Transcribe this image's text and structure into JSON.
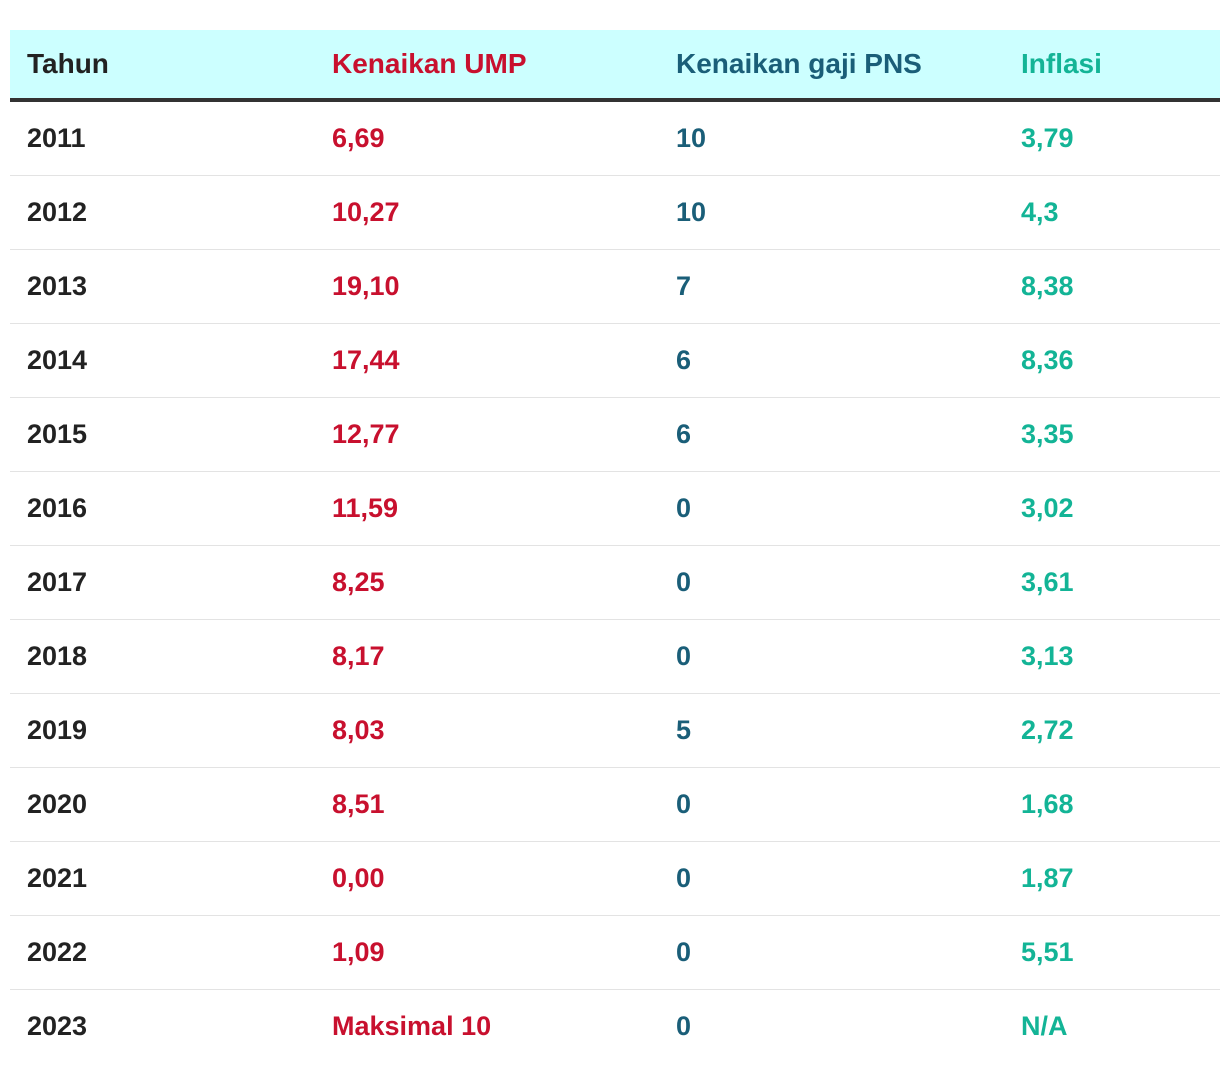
{
  "chart_data": {
    "type": "table",
    "columns": [
      "Tahun",
      "Kenaikan UMP",
      "Kenaikan gaji PNS",
      "Inflasi"
    ],
    "rows": [
      [
        "2011",
        "6,69",
        "10",
        "3,79"
      ],
      [
        "2012",
        "10,27",
        "10",
        "4,3"
      ],
      [
        "2013",
        "19,10",
        "7",
        "8,38"
      ],
      [
        "2014",
        "17,44",
        "6",
        "8,36"
      ],
      [
        "2015",
        "12,77",
        "6",
        "3,35"
      ],
      [
        "2016",
        "11,59",
        "0",
        "3,02"
      ],
      [
        "2017",
        "8,25",
        "0",
        "3,61"
      ],
      [
        "2018",
        "8,17",
        "0",
        "3,13"
      ],
      [
        "2019",
        "8,03",
        "5",
        "2,72"
      ],
      [
        "2020",
        "8,51",
        "0",
        "1,68"
      ],
      [
        "2021",
        "0,00",
        "0",
        "1,87"
      ],
      [
        "2022",
        "1,09",
        "0",
        "5,51"
      ],
      [
        "2023",
        "Maksimal 10",
        "0",
        "N/A"
      ]
    ]
  },
  "colors": {
    "header_background": "#ccffff",
    "header_text": "#c8102e",
    "year_text": "#222222",
    "ump_text": "#c8102e",
    "pns_text": "#1a5e78",
    "inflation_text": "#13b496",
    "header_rule": "#333333",
    "row_divider": "#e3e3e3"
  }
}
